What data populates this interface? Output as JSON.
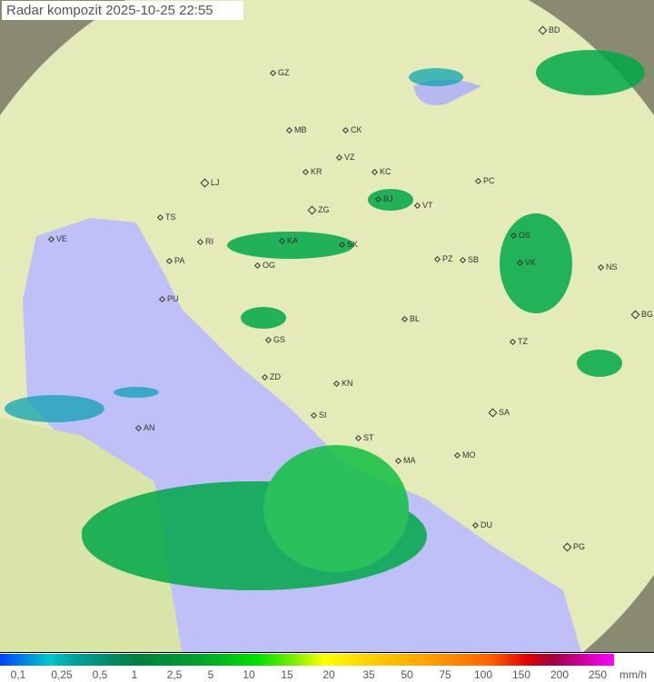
{
  "title": "Radar kompozit  2025-10-25   22:55",
  "colors": {
    "sea": "#c0c0f8",
    "land": "#e8edc0",
    "outside": "#8a8a70",
    "rain_light": "#00a0a0",
    "rain_medium": "#00b040",
    "rain_heavy": "#40e040"
  },
  "cities": [
    "BD",
    "GZ",
    "MB",
    "CK",
    "VZ",
    "KR",
    "KC",
    "PC",
    "LJ",
    "BJ",
    "VT",
    "ZG",
    "TS",
    "OS",
    "VE",
    "RI",
    "KA",
    "SK",
    "PZ",
    "SB",
    "NS",
    "VK",
    "PA",
    "OG",
    "PU",
    "GS",
    "BL",
    "TZ",
    "BG",
    "ZD",
    "KN",
    "SA",
    "SI",
    "AN",
    "ST",
    "MA",
    "MO",
    "DU",
    "PG"
  ],
  "legend": {
    "ticks": [
      "0,1",
      "0,25",
      "0,5",
      "1",
      "2,5",
      "5",
      "10",
      "15",
      "20",
      "35",
      "50",
      "75",
      "100",
      "150",
      "200",
      "250"
    ],
    "unit": "mm/h"
  }
}
